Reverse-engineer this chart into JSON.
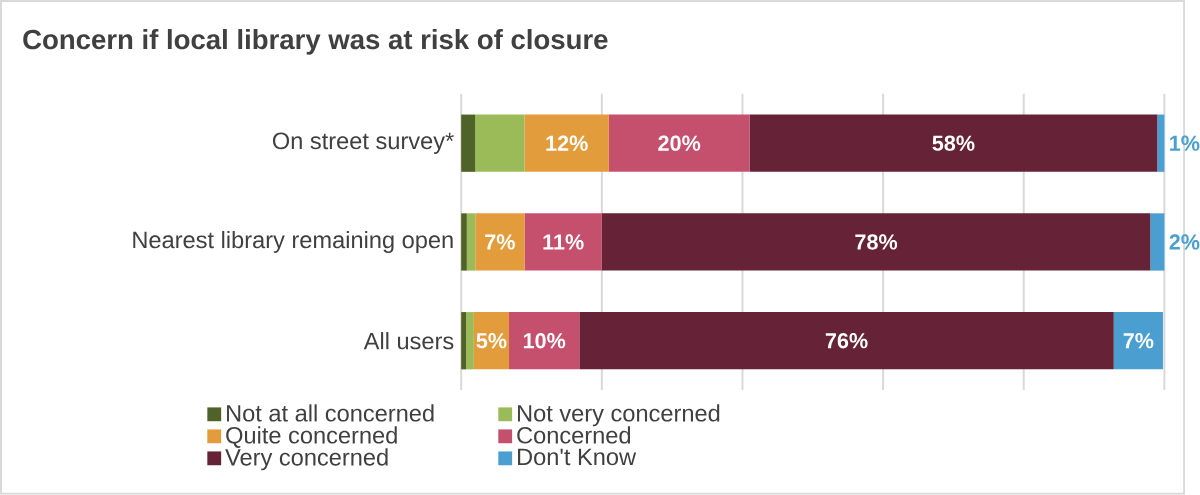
{
  "chart_data": {
    "type": "bar",
    "orientation": "horizontal",
    "stacked": true,
    "title": "Concern if local library was at risk of closure",
    "categories": [
      "On street survey*",
      "Nearest library remaining open",
      "All users"
    ],
    "series": [
      {
        "name": "Not at all concerned",
        "color": "#4f6228",
        "values": [
          2,
          0.8,
          0.7
        ],
        "value_labels": [
          null,
          null,
          null
        ]
      },
      {
        "name": "Not very concerned",
        "color": "#9bbb59",
        "values": [
          7,
          1.2,
          1.1
        ],
        "value_labels": [
          null,
          null,
          null
        ]
      },
      {
        "name": "Quite concerned",
        "color": "#e39c3b",
        "values": [
          12,
          7,
          5
        ],
        "value_labels": [
          "12%",
          "7%",
          "5%"
        ]
      },
      {
        "name": "Concerned",
        "color": "#c4506e",
        "values": [
          20,
          11,
          10
        ],
        "value_labels": [
          "20%",
          "11%",
          "10%"
        ]
      },
      {
        "name": "Very concerned",
        "color": "#662236",
        "values": [
          58,
          78,
          76
        ],
        "value_labels": [
          "58%",
          "78%",
          "76%"
        ]
      },
      {
        "name": "Don't Know",
        "color": "#4a9fd0",
        "values": [
          1,
          2,
          7
        ],
        "value_labels": [
          "1%",
          "2%",
          "7%"
        ]
      }
    ],
    "grid": "x",
    "legend": "bottom",
    "tick_labels": "y"
  }
}
